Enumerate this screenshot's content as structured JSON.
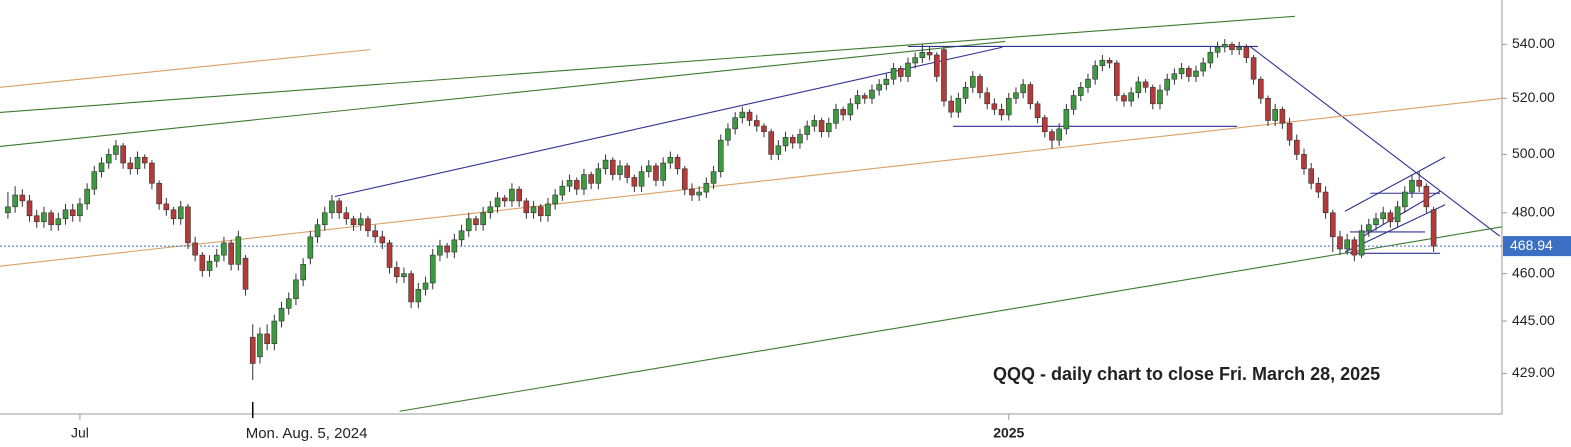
{
  "chart_data": {
    "type": "candlestick",
    "title": "QQQ - daily chart to close Fri. March 28, 2025",
    "log_scale": true,
    "ylim": [
      417,
      557
    ],
    "xlim": [
      -1.1,
      207.5
    ],
    "yticks": [
      {
        "value": 429,
        "label": "429.00"
      },
      {
        "value": 445,
        "label": "445.00"
      },
      {
        "value": 460,
        "label": "460.00"
      },
      {
        "value": 480,
        "label": "480.00"
      },
      {
        "value": 500,
        "label": "500.00"
      },
      {
        "value": 520,
        "label": "520.00"
      },
      {
        "value": 540,
        "label": "540.00"
      }
    ],
    "xticks": [
      {
        "value": 10,
        "label": "Jul"
      },
      {
        "value": 139,
        "label": "2025"
      }
    ],
    "annotations": [
      {
        "text": "Mon. Aug. 5, 2024",
        "x": 34
      }
    ],
    "last_price": 468.94,
    "last_price_color": "#3a6fc4",
    "up_color": "#3e9a3e",
    "down_color": "#b53b3b",
    "wick_color": "#333333",
    "candles": [
      [
        480,
        487,
        478,
        482
      ],
      [
        482,
        489,
        480,
        486
      ],
      [
        486,
        488,
        482,
        484
      ],
      [
        484,
        486,
        477,
        479
      ],
      [
        479,
        481,
        475,
        477
      ],
      [
        477,
        482,
        475,
        480
      ],
      [
        480,
        481,
        474,
        476
      ],
      [
        476,
        480,
        474,
        478
      ],
      [
        478,
        483,
        476,
        481
      ],
      [
        481,
        483,
        477,
        479
      ],
      [
        479,
        485,
        477,
        483
      ],
      [
        483,
        490,
        481,
        488
      ],
      [
        488,
        496,
        486,
        494
      ],
      [
        494,
        499,
        492,
        497
      ],
      [
        497,
        502,
        495,
        500
      ],
      [
        500,
        505,
        498,
        503
      ],
      [
        503,
        504,
        495,
        497
      ],
      [
        497,
        499,
        493,
        495
      ],
      [
        495,
        501,
        493,
        499
      ],
      [
        499,
        500,
        495,
        497
      ],
      [
        497,
        498,
        488,
        490
      ],
      [
        490,
        491,
        481,
        483
      ],
      [
        483,
        485,
        479,
        481
      ],
      [
        481,
        482,
        476,
        478
      ],
      [
        478,
        484,
        476,
        482
      ],
      [
        482,
        483,
        468,
        470
      ],
      [
        470,
        472,
        464,
        466
      ],
      [
        466,
        467,
        459,
        461
      ],
      [
        461,
        466,
        459,
        464
      ],
      [
        464,
        468,
        462,
        466
      ],
      [
        466,
        472,
        464,
        470
      ],
      [
        470,
        471,
        461,
        463
      ],
      [
        463,
        474,
        461,
        472
      ],
      [
        465,
        466,
        453,
        455
      ],
      [
        440,
        444,
        427,
        432
      ],
      [
        434,
        443,
        432,
        441
      ],
      [
        441,
        444,
        436,
        438
      ],
      [
        438,
        447,
        436,
        445
      ],
      [
        445,
        451,
        443,
        449
      ],
      [
        449,
        454,
        447,
        452
      ],
      [
        452,
        460,
        450,
        458
      ],
      [
        458,
        465,
        456,
        463
      ],
      [
        465,
        474,
        463,
        472
      ],
      [
        472,
        478,
        470,
        476
      ],
      [
        476,
        482,
        474,
        480
      ],
      [
        480,
        486,
        478,
        484
      ],
      [
        484,
        485,
        478,
        480
      ],
      [
        480,
        482,
        476,
        478
      ],
      [
        478,
        479,
        474,
        476
      ],
      [
        476,
        480,
        474,
        478
      ],
      [
        478,
        479,
        472,
        474
      ],
      [
        474,
        476,
        470,
        472
      ],
      [
        472,
        474,
        468,
        470
      ],
      [
        470,
        471,
        460,
        462
      ],
      [
        462,
        464,
        457,
        459
      ],
      [
        459,
        462,
        457,
        460
      ],
      [
        460,
        461,
        449,
        451
      ],
      [
        451,
        457,
        449,
        455
      ],
      [
        455,
        459,
        453,
        457
      ],
      [
        457,
        468,
        455,
        466
      ],
      [
        466,
        471,
        464,
        469
      ],
      [
        469,
        470,
        465,
        467
      ],
      [
        467,
        473,
        465,
        471
      ],
      [
        471,
        476,
        469,
        474
      ],
      [
        474,
        480,
        472,
        478
      ],
      [
        478,
        479,
        474,
        476
      ],
      [
        476,
        482,
        474,
        480
      ],
      [
        480,
        484,
        478,
        482
      ],
      [
        482,
        487,
        480,
        485
      ],
      [
        485,
        486,
        482,
        484
      ],
      [
        484,
        490,
        482,
        488
      ],
      [
        488,
        489,
        482,
        484
      ],
      [
        484,
        485,
        478,
        480
      ],
      [
        480,
        484,
        478,
        482
      ],
      [
        482,
        483,
        477,
        479
      ],
      [
        479,
        485,
        477,
        483
      ],
      [
        483,
        488,
        481,
        486
      ],
      [
        486,
        491,
        484,
        489
      ],
      [
        489,
        493,
        487,
        491
      ],
      [
        491,
        492,
        486,
        488
      ],
      [
        488,
        495,
        486,
        493
      ],
      [
        493,
        494,
        488,
        490
      ],
      [
        490,
        497,
        488,
        495
      ],
      [
        495,
        500,
        493,
        498
      ],
      [
        498,
        499,
        491,
        493
      ],
      [
        493,
        498,
        491,
        496
      ],
      [
        496,
        497,
        490,
        492
      ],
      [
        492,
        493,
        487,
        489
      ],
      [
        489,
        496,
        487,
        494
      ],
      [
        494,
        498,
        492,
        496
      ],
      [
        496,
        497,
        489,
        491
      ],
      [
        491,
        499,
        489,
        497
      ],
      [
        497,
        501,
        495,
        499
      ],
      [
        499,
        500,
        493,
        495
      ],
      [
        495,
        496,
        486,
        488
      ],
      [
        488,
        490,
        484,
        486
      ],
      [
        486,
        489,
        484,
        487
      ],
      [
        487,
        492,
        485,
        490
      ],
      [
        490,
        496,
        488,
        494
      ],
      [
        494,
        507,
        492,
        505
      ],
      [
        505,
        511,
        503,
        509
      ],
      [
        509,
        515,
        507,
        513
      ],
      [
        513,
        517,
        511,
        515
      ],
      [
        515,
        516,
        510,
        512
      ],
      [
        512,
        514,
        508,
        510
      ],
      [
        510,
        511,
        506,
        508
      ],
      [
        508,
        509,
        498,
        500
      ],
      [
        500,
        505,
        498,
        503
      ],
      [
        503,
        508,
        501,
        506
      ],
      [
        506,
        507,
        502,
        504
      ],
      [
        504,
        509,
        502,
        507
      ],
      [
        507,
        512,
        505,
        510
      ],
      [
        510,
        514,
        508,
        512
      ],
      [
        512,
        513,
        506,
        508
      ],
      [
        508,
        513,
        506,
        511
      ],
      [
        511,
        518,
        509,
        516
      ],
      [
        516,
        517,
        512,
        514
      ],
      [
        514,
        520,
        512,
        518
      ],
      [
        518,
        523,
        516,
        521
      ],
      [
        521,
        522,
        518,
        520
      ],
      [
        520,
        525,
        518,
        523
      ],
      [
        523,
        527,
        521,
        525
      ],
      [
        525,
        529,
        523,
        527
      ],
      [
        527,
        533,
        525,
        531
      ],
      [
        531,
        532,
        526,
        528
      ],
      [
        528,
        535,
        526,
        533
      ],
      [
        533,
        537,
        531,
        535
      ],
      [
        535,
        540,
        533,
        537
      ],
      [
        537,
        539,
        534,
        536
      ],
      [
        536,
        537,
        526,
        528
      ],
      [
        538,
        539,
        517,
        519
      ],
      [
        519,
        521,
        513,
        515
      ],
      [
        515,
        522,
        513,
        520
      ],
      [
        520,
        526,
        518,
        524
      ],
      [
        524,
        530,
        522,
        528
      ],
      [
        528,
        529,
        520,
        522
      ],
      [
        522,
        524,
        516,
        518
      ],
      [
        518,
        520,
        514,
        516
      ],
      [
        516,
        518,
        512,
        514
      ],
      [
        514,
        522,
        512,
        520
      ],
      [
        520,
        524,
        518,
        522
      ],
      [
        522,
        527,
        520,
        525
      ],
      [
        525,
        526,
        516,
        518
      ],
      [
        518,
        519,
        511,
        513
      ],
      [
        513,
        514,
        506,
        508
      ],
      [
        508,
        509,
        502,
        505
      ],
      [
        505,
        511,
        503,
        509
      ],
      [
        509,
        518,
        507,
        516
      ],
      [
        516,
        523,
        514,
        521
      ],
      [
        521,
        526,
        519,
        524
      ],
      [
        524,
        529,
        522,
        527
      ],
      [
        527,
        534,
        525,
        532
      ],
      [
        532,
        536,
        530,
        534
      ],
      [
        534,
        535,
        531,
        533
      ],
      [
        533,
        534,
        519,
        521
      ],
      [
        521,
        522,
        517,
        519
      ],
      [
        519,
        524,
        517,
        522
      ],
      [
        522,
        528,
        520,
        526
      ],
      [
        526,
        527,
        522,
        524
      ],
      [
        524,
        525,
        516,
        518
      ],
      [
        518,
        525,
        516,
        523
      ],
      [
        523,
        529,
        521,
        527
      ],
      [
        527,
        531,
        525,
        529
      ],
      [
        529,
        533,
        527,
        531
      ],
      [
        531,
        532,
        526,
        528
      ],
      [
        528,
        532,
        526,
        530
      ],
      [
        530,
        535,
        528,
        533
      ],
      [
        533,
        539,
        531,
        537
      ],
      [
        537,
        541,
        535,
        539
      ],
      [
        539,
        542,
        537,
        540
      ],
      [
        540,
        541,
        536,
        538
      ],
      [
        538,
        541,
        536,
        539
      ],
      [
        539,
        540,
        533,
        535
      ],
      [
        535,
        536,
        525,
        527
      ],
      [
        527,
        528,
        518,
        520
      ],
      [
        520,
        521,
        510,
        512
      ],
      [
        512,
        518,
        510,
        516
      ],
      [
        516,
        517,
        509,
        511
      ],
      [
        511,
        513,
        503,
        505
      ],
      [
        505,
        507,
        498,
        500
      ],
      [
        500,
        502,
        493,
        495
      ],
      [
        495,
        497,
        488,
        490
      ],
      [
        490,
        492,
        485,
        487
      ],
      [
        487,
        489,
        478,
        480
      ],
      [
        480,
        481,
        467,
        472
      ],
      [
        472,
        474,
        466,
        468
      ],
      [
        468,
        473,
        466,
        471
      ],
      [
        471,
        472,
        464,
        466
      ],
      [
        466,
        476,
        465,
        474
      ],
      [
        474,
        478,
        472,
        476
      ],
      [
        476,
        480,
        474,
        478
      ],
      [
        478,
        482,
        476,
        480
      ],
      [
        480,
        481,
        475,
        477
      ],
      [
        477,
        484,
        475,
        482
      ],
      [
        482,
        489,
        480,
        487
      ],
      [
        487,
        493,
        485,
        491
      ],
      [
        491,
        494,
        487,
        489
      ],
      [
        489,
        490,
        480,
        482
      ],
      [
        481,
        482,
        467,
        468.94
      ]
    ],
    "trendlines": [
      {
        "color": "#d9a066",
        "x": [
          -1.1,
          50.3
        ],
        "y": [
          524,
          538
        ]
      },
      {
        "color": "#3d7a2e",
        "x": [
          -1.1,
          178.75
        ],
        "y": [
          514.9,
          550.7
        ]
      },
      {
        "color": "#3d7a2e",
        "x": [
          -1.1,
          138.5
        ],
        "y": [
          502.8,
          541.1
        ]
      },
      {
        "color": "#2e3192",
        "x": [
          45.4,
          138.1
        ],
        "y": [
          485.5,
          538.9
        ]
      },
      {
        "color": "#2e3192",
        "x": [
          125,
          173.6
        ],
        "y": [
          539.2,
          539.2
        ]
      },
      {
        "color": "#2e3192",
        "x": [
          131.25,
          170.7
        ],
        "y": [
          509.9,
          509.9
        ]
      },
      {
        "color": "#2e3192",
        "x": [
          172.5,
          207.2
        ],
        "y": [
          539.2,
          472.2
        ]
      },
      {
        "color": "#d9a066",
        "x": [
          -1.1,
          207.5
        ],
        "y": [
          462.4,
          520
        ]
      },
      {
        "color": "#3d7a2e",
        "x": [
          54.4,
          207.5
        ],
        "y": [
          417.8,
          475.3
        ]
      },
      {
        "color": "#2e3192",
        "x": [
          185.7,
          199.6
        ],
        "y": [
          480.5,
          499.1
        ]
      },
      {
        "color": "#2e3192",
        "x": [
          185.7,
          199.6
        ],
        "y": [
          467,
          482.7
        ]
      },
      {
        "color": "#2e3192",
        "x": [
          187.8,
          198.9
        ],
        "y": [
          471.6,
          487.3
        ]
      },
      {
        "color": "#2e3192",
        "x": [
          189.2,
          198.9
        ],
        "y": [
          486.6,
          486.6
        ]
      },
      {
        "color": "#2e3192",
        "x": [
          186.4,
          196.8
        ],
        "y": [
          473.6,
          473.6
        ]
      },
      {
        "color": "#2e3192",
        "x": [
          186.4,
          198.9
        ],
        "y": [
          466.6,
          466.6
        ]
      }
    ]
  }
}
